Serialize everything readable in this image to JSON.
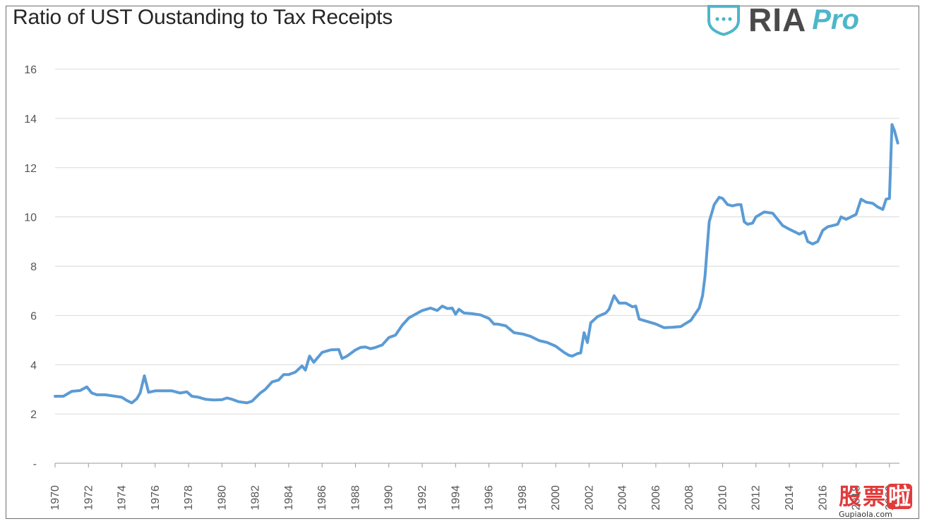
{
  "chart_data": {
    "type": "line",
    "title": "Ratio of UST Oustanding to Tax Receipts",
    "xlabel": "",
    "ylabel": "",
    "xlim": [
      1970,
      2020.6
    ],
    "ylim": [
      0,
      16
    ],
    "yticks": [
      {
        "value": 0,
        "label": "-"
      },
      {
        "value": 2,
        "label": "2"
      },
      {
        "value": 4,
        "label": "4"
      },
      {
        "value": 6,
        "label": "6"
      },
      {
        "value": 8,
        "label": "8"
      },
      {
        "value": 10,
        "label": "10"
      },
      {
        "value": 12,
        "label": "12"
      },
      {
        "value": 14,
        "label": "14"
      },
      {
        "value": 16,
        "label": "16"
      }
    ],
    "xticks": [
      {
        "value": 1970,
        "label": "1970"
      },
      {
        "value": 1972,
        "label": "1972"
      },
      {
        "value": 1974,
        "label": "1974"
      },
      {
        "value": 1976,
        "label": "1976"
      },
      {
        "value": 1978,
        "label": "1978"
      },
      {
        "value": 1980,
        "label": "1980"
      },
      {
        "value": 1982,
        "label": "1982"
      },
      {
        "value": 1984,
        "label": "1984"
      },
      {
        "value": 1986,
        "label": "1986"
      },
      {
        "value": 1988,
        "label": "1988"
      },
      {
        "value": 1990,
        "label": "1990"
      },
      {
        "value": 1992,
        "label": "1992"
      },
      {
        "value": 1994,
        "label": "1994"
      },
      {
        "value": 1996,
        "label": "1996"
      },
      {
        "value": 1998,
        "label": "1998"
      },
      {
        "value": 2000,
        "label": "2000"
      },
      {
        "value": 2002,
        "label": "2002"
      },
      {
        "value": 2004,
        "label": "2004"
      },
      {
        "value": 2006,
        "label": "2006"
      },
      {
        "value": 2008,
        "label": "2008"
      },
      {
        "value": 2010,
        "label": "2010"
      },
      {
        "value": 2012,
        "label": "2012"
      },
      {
        "value": 2014,
        "label": "2014"
      },
      {
        "value": 2016,
        "label": "2016"
      },
      {
        "value": 2018,
        "label": "2018"
      },
      {
        "value": 2020,
        "label": "2020"
      }
    ],
    "grid": true,
    "legend": "none",
    "series": [
      {
        "color": "#5b9bd5",
        "x": [
          1970.0,
          1970.5,
          1971.0,
          1971.5,
          1971.9,
          1972.2,
          1972.5,
          1973.0,
          1973.5,
          1974.0,
          1974.3,
          1974.6,
          1974.9,
          1975.1,
          1975.35,
          1975.6,
          1976.0,
          1976.5,
          1977.0,
          1977.5,
          1977.9,
          1978.2,
          1978.6,
          1979.0,
          1979.5,
          1980.0,
          1980.3,
          1980.6,
          1981.0,
          1981.5,
          1981.8,
          1982.0,
          1982.3,
          1982.6,
          1983.0,
          1983.4,
          1983.7,
          1984.0,
          1984.4,
          1984.8,
          1985.0,
          1985.25,
          1985.5,
          1986.0,
          1986.5,
          1987.0,
          1987.2,
          1987.5,
          1988.0,
          1988.3,
          1988.6,
          1988.9,
          1989.2,
          1989.6,
          1990.0,
          1990.4,
          1990.8,
          1991.2,
          1991.6,
          1992.0,
          1992.5,
          1992.9,
          1993.2,
          1993.5,
          1993.8,
          1994.0,
          1994.2,
          1994.5,
          1995.0,
          1995.5,
          1996.0,
          1996.3,
          1996.5,
          1997.0,
          1997.5,
          1998.0,
          1998.5,
          1999.0,
          1999.5,
          2000.0,
          2000.5,
          2000.8,
          2001.0,
          2001.3,
          2001.5,
          2001.7,
          2001.9,
          2002.1,
          2002.5,
          2003.0,
          2003.2,
          2003.5,
          2003.8,
          2004.2,
          2004.6,
          2004.8,
          2005.0,
          2005.5,
          2006.0,
          2006.5,
          2007.0,
          2007.5,
          2007.8,
          2008.1,
          2008.4,
          2008.6,
          2008.8,
          2008.95,
          2009.2,
          2009.5,
          2009.8,
          2010.0,
          2010.3,
          2010.6,
          2010.9,
          2011.1,
          2011.3,
          2011.5,
          2011.8,
          2012.0,
          2012.5,
          2013.0,
          2013.3,
          2013.6,
          2014.0,
          2014.3,
          2014.6,
          2014.9,
          2015.1,
          2015.4,
          2015.7,
          2016.0,
          2016.3,
          2016.6,
          2016.9,
          2017.1,
          2017.4,
          2017.7,
          2018.0,
          2018.3,
          2018.6,
          2019.0,
          2019.3,
          2019.6,
          2019.8,
          2020.0,
          2020.15,
          2020.3,
          2020.5
        ],
        "y": [
          2.72,
          2.72,
          2.92,
          2.95,
          3.1,
          2.85,
          2.78,
          2.78,
          2.73,
          2.68,
          2.55,
          2.45,
          2.62,
          2.85,
          3.55,
          2.88,
          2.94,
          2.94,
          2.94,
          2.85,
          2.9,
          2.72,
          2.68,
          2.6,
          2.57,
          2.58,
          2.65,
          2.6,
          2.5,
          2.45,
          2.52,
          2.65,
          2.85,
          3.0,
          3.3,
          3.38,
          3.6,
          3.6,
          3.7,
          3.95,
          3.78,
          4.35,
          4.1,
          4.5,
          4.6,
          4.62,
          4.25,
          4.35,
          4.6,
          4.7,
          4.72,
          4.65,
          4.7,
          4.8,
          5.1,
          5.2,
          5.6,
          5.9,
          6.05,
          6.2,
          6.3,
          6.2,
          6.38,
          6.28,
          6.3,
          6.05,
          6.25,
          6.1,
          6.07,
          6.02,
          5.88,
          5.65,
          5.65,
          5.58,
          5.3,
          5.25,
          5.15,
          4.98,
          4.9,
          4.75,
          4.5,
          4.38,
          4.35,
          4.45,
          4.48,
          5.3,
          4.9,
          5.7,
          5.95,
          6.1,
          6.25,
          6.8,
          6.5,
          6.5,
          6.35,
          6.38,
          5.85,
          5.75,
          5.65,
          5.5,
          5.52,
          5.55,
          5.68,
          5.8,
          6.1,
          6.3,
          6.8,
          7.6,
          9.8,
          10.5,
          10.8,
          10.75,
          10.5,
          10.45,
          10.5,
          10.5,
          9.8,
          9.7,
          9.75,
          10.0,
          10.2,
          10.15,
          9.9,
          9.65,
          9.5,
          9.4,
          9.3,
          9.4,
          9.0,
          8.9,
          9.0,
          9.45,
          9.6,
          9.65,
          9.7,
          10.0,
          9.9,
          10.0,
          10.1,
          10.72,
          10.6,
          10.55,
          10.4,
          10.3,
          10.72,
          10.75,
          13.75,
          13.5,
          13.0
        ]
      }
    ]
  },
  "logo": {
    "brand": "RIA",
    "product": "Pro",
    "icon": "shield-chat-icon",
    "primary_color": "#4a4a4a",
    "accent_color": "#4db6c9"
  },
  "watermark": {
    "chars": [
      "股",
      "票",
      "啦"
    ],
    "url": "Gupiaola.com",
    "color": "#e23a3a"
  }
}
